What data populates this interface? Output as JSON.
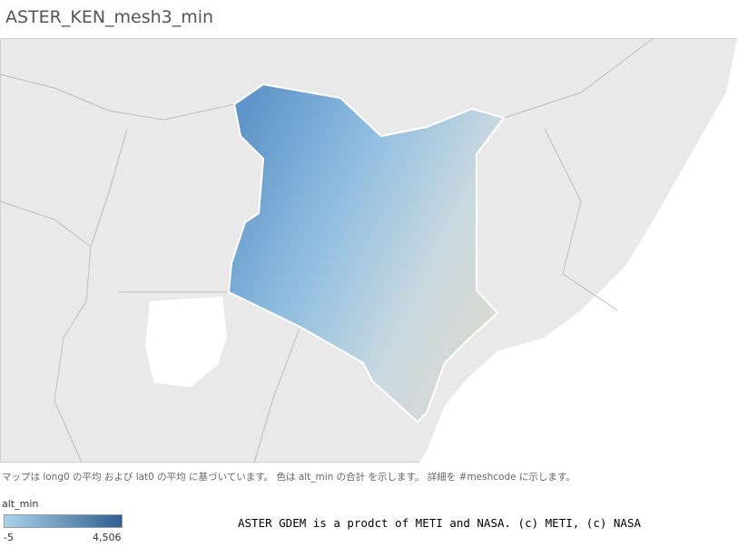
{
  "header": {
    "title": "ASTER_KEN_mesh3_min"
  },
  "caption": "マップは long0 の平均 および lat0 の平均 に基づいています。 色は alt_min の合計 を示します。 詳細を #meshcode に示します。",
  "legend": {
    "title": "alt_min",
    "min": -5,
    "max": {
      "value": 4506,
      "label": "4,506"
    },
    "color_low": "#a9d3ea",
    "color_high": "#2f5e8f"
  },
  "credit": "ASTER GDEM is a prodct of METI and NASA. (c) METI, (c) NASA"
}
